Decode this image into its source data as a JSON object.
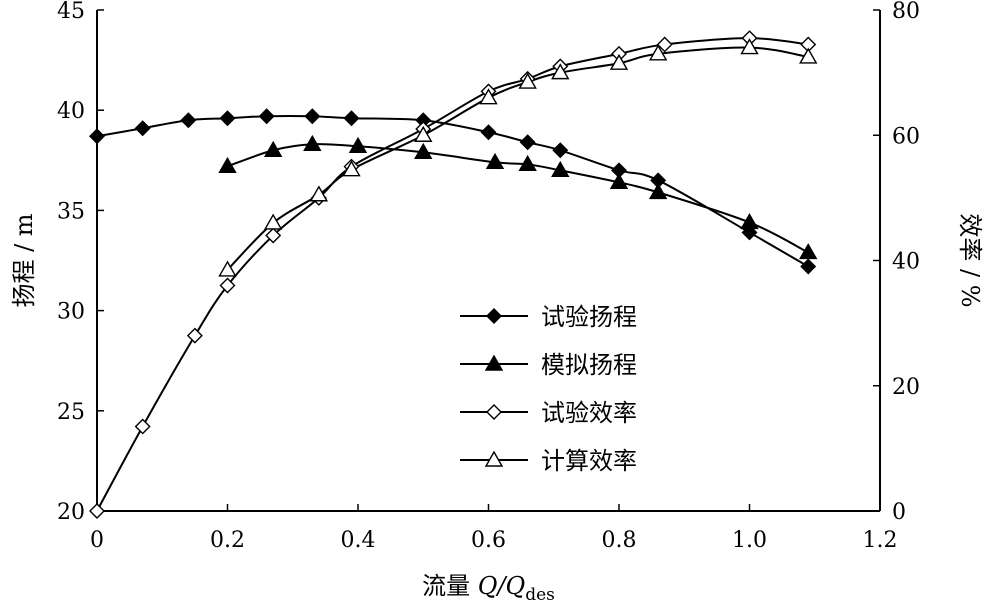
{
  "chart_data": {
    "type": "line",
    "x_axis": {
      "label_prefix": "流量 ",
      "label_italic": "Q/Q",
      "label_sub": "des",
      "range": [
        0,
        1.2
      ],
      "ticks": [
        0,
        0.2,
        0.4,
        0.6,
        0.8,
        1.0,
        1.2
      ],
      "tick_labels": [
        "0",
        "0.2",
        "0.4",
        "0.6",
        "0.8",
        "1.0",
        "1.2"
      ]
    },
    "y_left": {
      "label": "扬程 / m",
      "range": [
        20,
        45
      ],
      "ticks": [
        20,
        25,
        30,
        35,
        40,
        45
      ],
      "tick_labels": [
        "20",
        "25",
        "30",
        "35",
        "40",
        "45"
      ]
    },
    "y_right": {
      "label": "效率 / %",
      "range": [
        0,
        80
      ],
      "ticks": [
        0,
        20,
        40,
        60,
        80
      ],
      "tick_labels": [
        "0",
        "20",
        "40",
        "60",
        "80"
      ]
    },
    "grid": false,
    "legend_position": "center-right",
    "series": [
      {
        "name": "试验扬程",
        "axis": "left",
        "marker": "diamond-filled",
        "x": [
          0.0,
          0.07,
          0.14,
          0.2,
          0.26,
          0.33,
          0.39,
          0.5,
          0.6,
          0.66,
          0.71,
          0.8,
          0.86,
          1.0,
          1.09
        ],
        "y": [
          38.7,
          39.1,
          39.5,
          39.6,
          39.7,
          39.7,
          39.6,
          39.5,
          38.9,
          38.4,
          38.0,
          37.0,
          36.5,
          33.9,
          32.2
        ]
      },
      {
        "name": "模拟扬程",
        "axis": "left",
        "marker": "triangle-filled",
        "x": [
          0.2,
          0.27,
          0.33,
          0.4,
          0.5,
          0.61,
          0.66,
          0.71,
          0.8,
          0.86,
          1.0,
          1.09
        ],
        "y": [
          37.2,
          38.0,
          38.3,
          38.2,
          37.9,
          37.4,
          37.3,
          37.0,
          36.4,
          35.9,
          34.4,
          32.9
        ]
      },
      {
        "name": "试验效率",
        "axis": "right",
        "marker": "diamond-open",
        "x": [
          0.0,
          0.07,
          0.15,
          0.2,
          0.27,
          0.34,
          0.39,
          0.5,
          0.6,
          0.66,
          0.71,
          0.8,
          0.87,
          1.0,
          1.09
        ],
        "y": [
          0,
          13.5,
          28,
          36,
          44,
          50,
          55,
          61,
          67,
          69,
          71,
          73,
          74.5,
          75.5,
          74.5
        ]
      },
      {
        "name": "计算效率",
        "axis": "right",
        "marker": "triangle-open",
        "x": [
          0.2,
          0.27,
          0.34,
          0.39,
          0.5,
          0.6,
          0.66,
          0.71,
          0.8,
          0.86,
          1.0,
          1.09
        ],
        "y": [
          38.5,
          46,
          50.5,
          54.5,
          60,
          66,
          68.5,
          70,
          71.5,
          73,
          74,
          72.5
        ]
      }
    ]
  }
}
